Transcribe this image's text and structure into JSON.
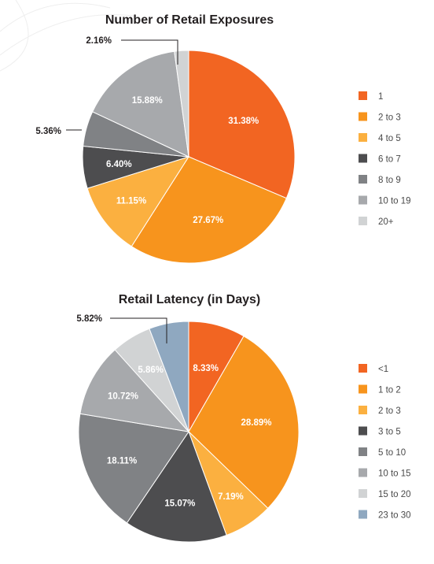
{
  "chart_data": [
    {
      "type": "pie",
      "title": "Number of Retail Exposures",
      "categories": [
        "1",
        "2 to 3",
        "4 to 5",
        "6 to 7",
        "8 to 9",
        "10 to 19",
        "20+"
      ],
      "values": [
        31.38,
        27.67,
        11.15,
        6.4,
        5.36,
        15.88,
        2.16
      ],
      "labels": [
        "31.38%",
        "27.67%",
        "11.15%",
        "6.40%",
        "5.36%",
        "15.88%",
        "2.16%"
      ],
      "colors": [
        "#f26522",
        "#f7941d",
        "#fbb040",
        "#4d4d4f",
        "#808285",
        "#a7a9ac",
        "#d1d3d4"
      ],
      "outside_labels": [
        4,
        6
      ],
      "legend_position": "right"
    },
    {
      "type": "pie",
      "title": "Retail Latency (in Days)",
      "categories": [
        "<1",
        "1 to 2",
        "2 to 3",
        "3 to 5",
        "5 to 10",
        "10 to 15",
        "15 to 20",
        "23 to 30"
      ],
      "values": [
        8.33,
        28.89,
        7.19,
        15.07,
        18.11,
        10.72,
        5.86,
        5.82
      ],
      "labels": [
        "8.33%",
        "28.89%",
        "7.19%",
        "15.07%",
        "18.11%",
        "10.72%",
        "5.86%",
        "5.82%"
      ],
      "colors": [
        "#f26522",
        "#f7941d",
        "#fbb040",
        "#4d4d4f",
        "#808285",
        "#a7a9ac",
        "#d1d3d4",
        "#8fa8c0"
      ],
      "outside_labels": [
        7
      ],
      "legend_position": "right"
    }
  ]
}
